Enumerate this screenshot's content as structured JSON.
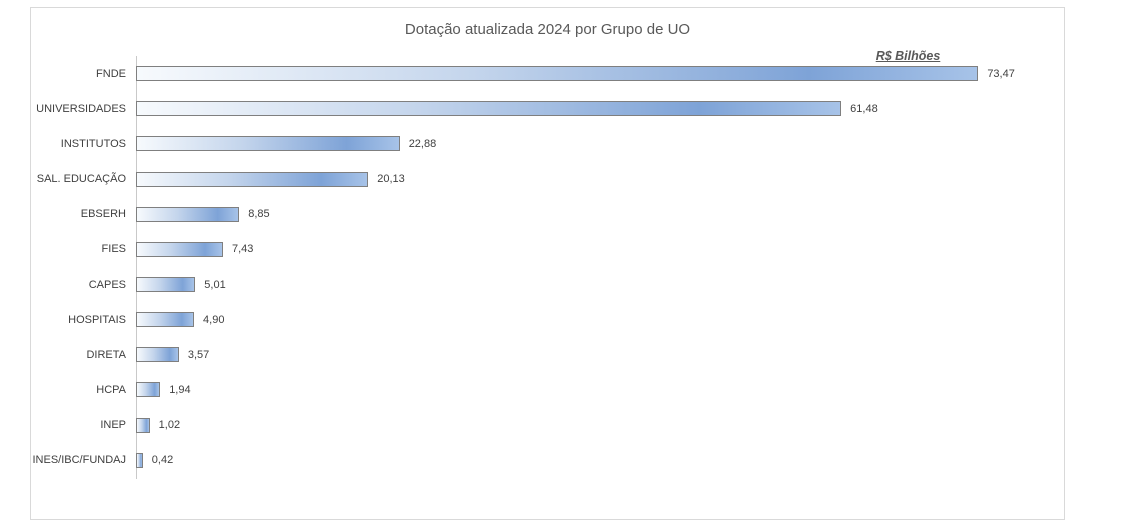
{
  "chart_data": {
    "type": "bar",
    "orientation": "horizontal",
    "title": "Dotação atualizada 2024 por Grupo de UO",
    "units_annotation": "R$ Bilhões",
    "categories": [
      "FNDE",
      "UNIVERSIDADES",
      "INSTITUTOS",
      "SAL. EDUCAÇÃO",
      "EBSERH",
      "FIES",
      "CAPES",
      "HOSPITAIS",
      "DIRETA",
      "HCPA",
      "INEP",
      "INES/IBC/FUNDAJ"
    ],
    "values": [
      73.47,
      61.48,
      22.88,
      20.13,
      8.85,
      7.43,
      5.01,
      4.9,
      3.57,
      1.94,
      1.02,
      0.42
    ],
    "value_labels": [
      "73,47",
      "61,48",
      "22,88",
      "20,13",
      "8,85",
      "7,43",
      "5,01",
      "4,90",
      "3,57",
      "1,94",
      "1,02",
      "0,42"
    ],
    "xlim": [
      0,
      80
    ],
    "grid": false,
    "legend": false,
    "colors": {
      "bar_gradient_start": "#f7fafd",
      "bar_gradient_main": "#7ea3d7",
      "bar_gradient_end": "#a7c3e8",
      "bar_border": "#7f7f7f",
      "axis_line": "#c9c9c9",
      "frame_border": "#d9d9d9",
      "title_text": "#595959",
      "label_text": "#404040"
    }
  }
}
